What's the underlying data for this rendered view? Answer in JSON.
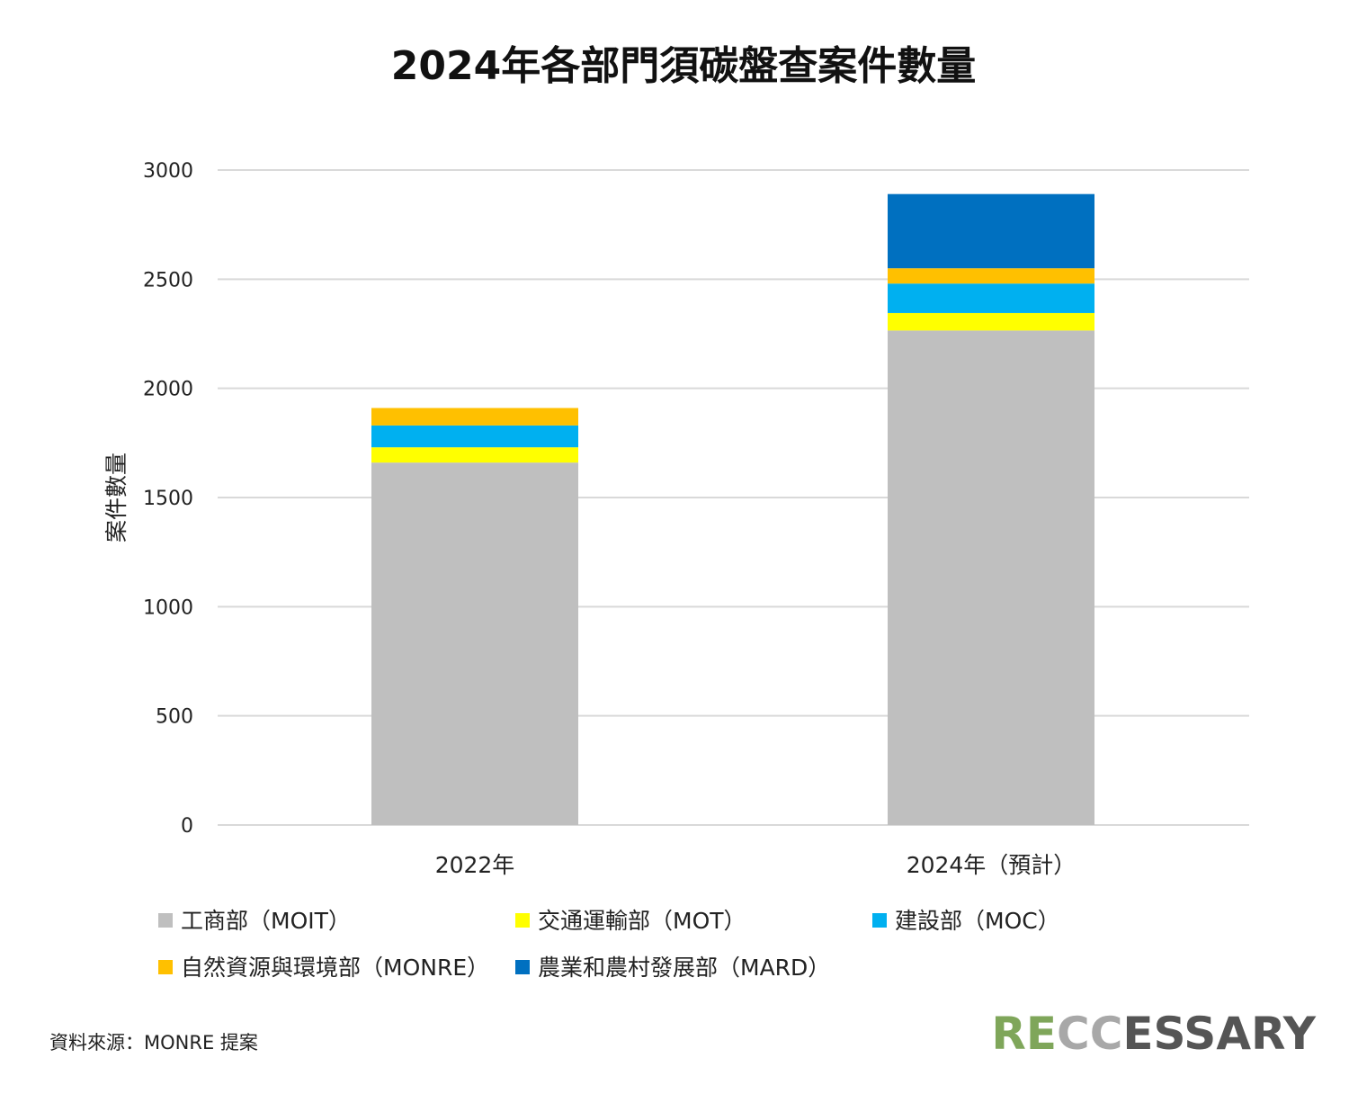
{
  "chart_data": {
    "type": "bar",
    "stacked": true,
    "title": "2024年各部門須碳盤查案件數量",
    "xlabel": "",
    "ylabel": "案件數量",
    "ylim": [
      0,
      3000
    ],
    "yticks": [
      "0",
      "500",
      "1000",
      "1500",
      "2000",
      "2500",
      "3000"
    ],
    "grid": true,
    "legend_position": "bottom",
    "categories": [
      "2022年",
      "2024年（預計）"
    ],
    "series": [
      {
        "name": "工商部（MOIT）",
        "color": "#BFBFBF",
        "values": [
          1660,
          2265
        ]
      },
      {
        "name": "交通運輸部（MOT）",
        "color": "#FFFF00",
        "values": [
          70,
          80
        ]
      },
      {
        "name": "建設部（MOC）",
        "color": "#00B0F0",
        "values": [
          100,
          135
        ]
      },
      {
        "name": "自然資源與環境部（MONRE）",
        "color": "#FFC000",
        "values": [
          80,
          70
        ]
      },
      {
        "name": "農業和農村發展部（MARD）",
        "color": "#0070C0",
        "values": [
          0,
          340
        ]
      }
    ]
  },
  "source": "資料來源：MONRE 提案",
  "logo": {
    "text_parts": [
      "R",
      "E",
      "CC",
      "ESSARY"
    ],
    "colors": [
      "#7FA65A",
      "#7FA65A",
      "#A8A8A8",
      "#555555"
    ]
  }
}
